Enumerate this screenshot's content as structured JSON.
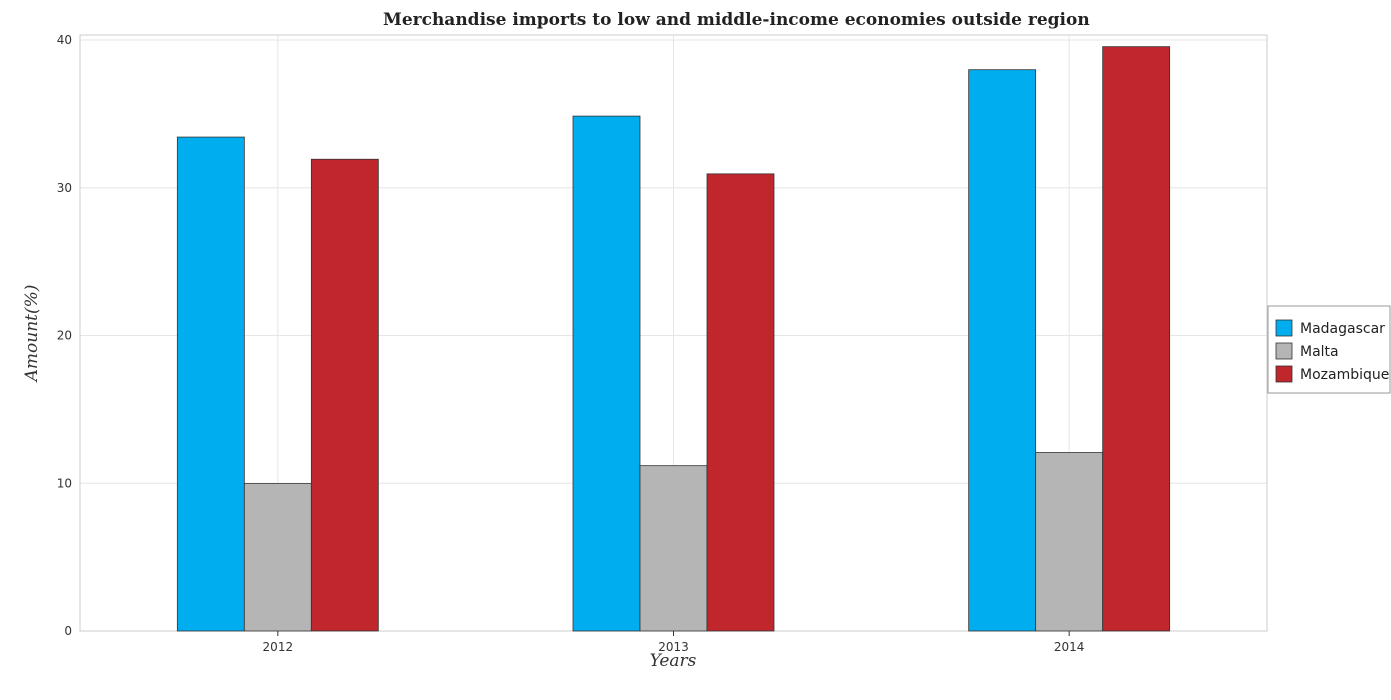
{
  "chart_data": {
    "type": "bar",
    "title": "Merchandise imports to low and middle-income economies outside region",
    "xlabel": "Years",
    "ylabel": "Amount(%)",
    "categories": [
      "2012",
      "2013",
      "2014"
    ],
    "ylim": [
      0,
      40
    ],
    "yticks": [
      0,
      10,
      20,
      30,
      40
    ],
    "grid": true,
    "legend_position": "right",
    "series": [
      {
        "name": "Madagascar",
        "color": "#00aeef",
        "values": [
          33.43,
          34.85,
          37.99
        ]
      },
      {
        "name": "Malta",
        "color": "#b5b5b5",
        "values": [
          9.98,
          11.19,
          12.08
        ]
      },
      {
        "name": "Mozambique",
        "color": "#c0272d",
        "values": [
          31.93,
          30.94,
          39.55
        ]
      }
    ]
  }
}
